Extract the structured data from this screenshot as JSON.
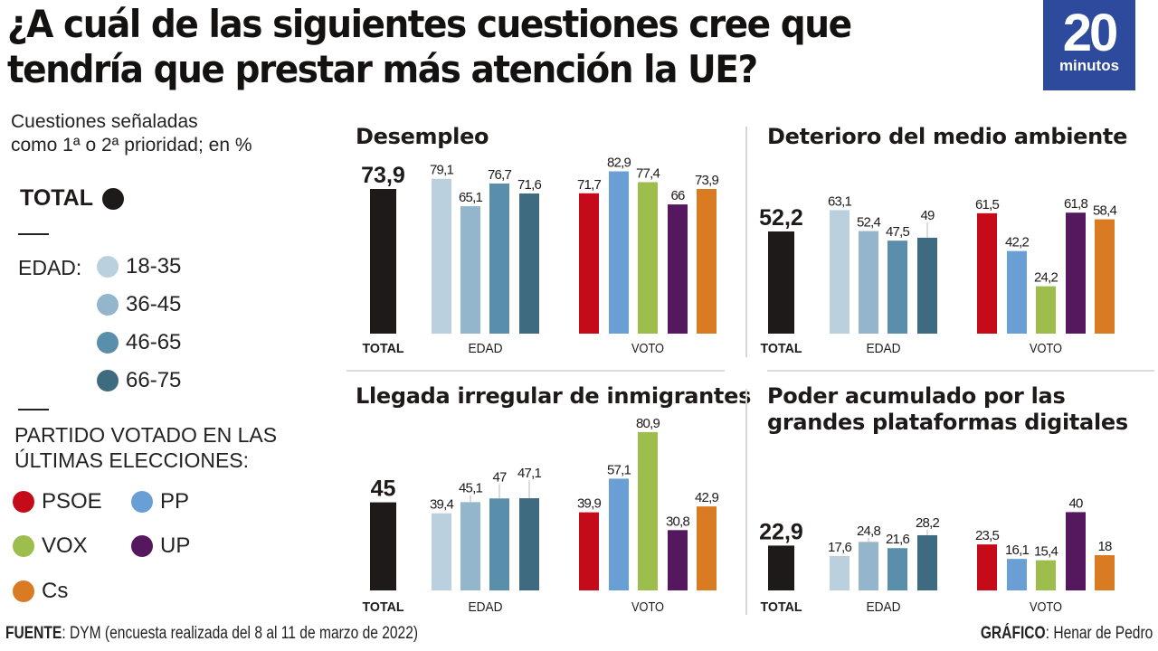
{
  "title": "¿A cuál de las siguientes cuestiones cree que tendría que prestar más atención la UE?",
  "logo": {
    "number": "20",
    "word": "minutos",
    "color": "#2e4a9c"
  },
  "subtitle_line1": "Cuestiones señaladas",
  "subtitle_line2": "como 1ª o 2ª prioridad; en %",
  "legend": {
    "total_label": "TOTAL",
    "total_color": "#1e1a19",
    "edad_label": "EDAD:",
    "age_groups": [
      {
        "label": "18-35",
        "color": "#bad0df"
      },
      {
        "label": "36-45",
        "color": "#93b6cd"
      },
      {
        "label": "46-65",
        "color": "#5a8fab"
      },
      {
        "label": "66-75",
        "color": "#3f6b80"
      }
    ],
    "party_heading_line1": "PARTIDO VOTADO EN LAS",
    "party_heading_line2": "ÚLTIMAS ELECCIONES:",
    "parties": [
      {
        "label": "PSOE",
        "color": "#c50a1a"
      },
      {
        "label": "PP",
        "color": "#6a9fd6"
      },
      {
        "label": "VOX",
        "color": "#9dbd4c"
      },
      {
        "label": "UP",
        "color": "#55175d"
      },
      {
        "label": "Cs",
        "color": "#d97b22"
      }
    ]
  },
  "footer": {
    "source_label": "FUENTE",
    "source_text": ": DYM (encuesta realizada del 8 al 11 de marzo de 2022)",
    "credit_label": "GRÁFICO",
    "credit_text": ": Henar de Pedro"
  },
  "chart_data": [
    {
      "type": "bar",
      "title": "Desempleo",
      "group_labels": [
        "TOTAL",
        "EDAD",
        "VOTO"
      ],
      "total": {
        "value": 73.9,
        "label": "73,9"
      },
      "edad": {
        "categories": [
          "18-35",
          "36-45",
          "46-65",
          "66-75"
        ],
        "values": [
          79.1,
          65.1,
          76.7,
          71.6
        ],
        "labels": [
          "79,1",
          "65,1",
          "76,7",
          "71,6"
        ]
      },
      "voto": {
        "categories": [
          "PSOE",
          "PP",
          "VOX",
          "UP",
          "Cs"
        ],
        "values": [
          71.7,
          82.9,
          77.4,
          66,
          73.9
        ],
        "labels": [
          "71,7",
          "82,9",
          "77,4",
          "66",
          "73,9"
        ]
      },
      "unit": "%",
      "ylim": [
        0,
        100
      ]
    },
    {
      "type": "bar",
      "title": "Deterioro del medio ambiente",
      "group_labels": [
        "TOTAL",
        "EDAD",
        "VOTO"
      ],
      "total": {
        "value": 52.2,
        "label": "52,2"
      },
      "edad": {
        "categories": [
          "18-35",
          "36-45",
          "46-65",
          "66-75"
        ],
        "values": [
          63.1,
          52.4,
          47.5,
          49
        ],
        "labels": [
          "63,1",
          "52,4",
          "47,5",
          "49"
        ]
      },
      "voto": {
        "categories": [
          "PSOE",
          "PP",
          "VOX",
          "UP",
          "Cs"
        ],
        "values": [
          61.5,
          42.2,
          24.2,
          61.8,
          58.4
        ],
        "labels": [
          "61,5",
          "42,2",
          "24,2",
          "61,8",
          "58,4"
        ]
      },
      "unit": "%",
      "ylim": [
        0,
        100
      ]
    },
    {
      "type": "bar",
      "title": "Llegada irregular de inmigrantes",
      "group_labels": [
        "TOTAL",
        "EDAD",
        "VOTO"
      ],
      "total": {
        "value": 45,
        "label": "45"
      },
      "edad": {
        "categories": [
          "18-35",
          "36-45",
          "46-65",
          "66-75"
        ],
        "values": [
          39.4,
          45.1,
          47,
          47.1
        ],
        "labels": [
          "39,4",
          "45,1",
          "47",
          "47,1"
        ]
      },
      "voto": {
        "categories": [
          "PSOE",
          "PP",
          "VOX",
          "UP",
          "Cs"
        ],
        "values": [
          39.9,
          57.1,
          80.9,
          30.8,
          42.9
        ],
        "labels": [
          "39,9",
          "57,1",
          "80,9",
          "30,8",
          "42,9"
        ]
      },
      "unit": "%",
      "ylim": [
        0,
        100
      ]
    },
    {
      "type": "bar",
      "title": "Poder acumulado por las grandes plataformas digitales",
      "group_labels": [
        "TOTAL",
        "EDAD",
        "VOTO"
      ],
      "total": {
        "value": 22.9,
        "label": "22,9"
      },
      "edad": {
        "categories": [
          "18-35",
          "36-45",
          "46-65",
          "66-75"
        ],
        "values": [
          17.6,
          24.8,
          21.6,
          28.2
        ],
        "labels": [
          "17,6",
          "24,8",
          "21,6",
          "28,2"
        ]
      },
      "voto": {
        "categories": [
          "PSOE",
          "PP",
          "VOX",
          "UP",
          "Cs"
        ],
        "values": [
          23.5,
          16.1,
          15.4,
          40,
          18
        ],
        "labels": [
          "23,5",
          "16,1",
          "15,4",
          "40",
          "18"
        ]
      },
      "unit": "%",
      "ylim": [
        0,
        100
      ]
    }
  ]
}
